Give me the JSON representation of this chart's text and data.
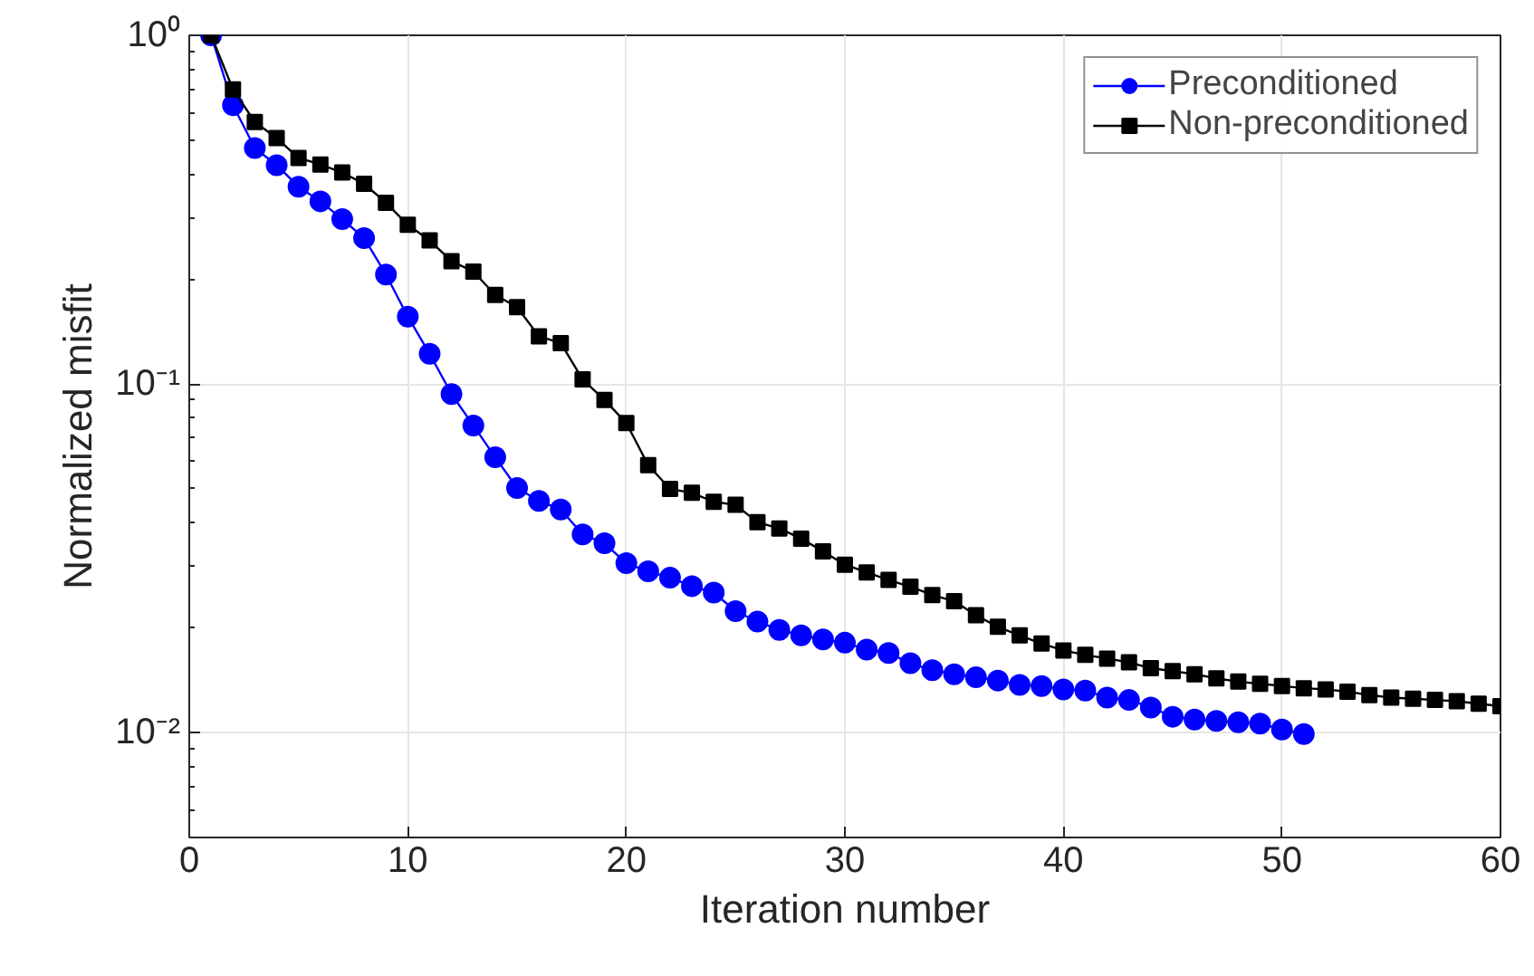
{
  "chart_data": {
    "type": "line",
    "xlabel": "Iteration number",
    "ylabel": "Normalized misfit",
    "log": "y",
    "grid": true,
    "legend": "top right",
    "line_style": "solid",
    "xlim": [
      0,
      60
    ],
    "xticks": [
      0,
      10,
      20,
      30,
      40,
      50,
      60
    ],
    "ylim": [
      0.005,
      1
    ],
    "yticks": [
      {
        "value": 0.01,
        "label": "10⁻²"
      },
      {
        "value": 0.1,
        "label": "10⁻¹"
      },
      {
        "value": 1,
        "label": "10⁰"
      }
    ],
    "series": [
      {
        "name": "Preconditioned",
        "color": "#0000ff",
        "marker": "circle",
        "x": [
          1,
          2,
          3,
          4,
          5,
          6,
          7,
          8,
          9,
          10,
          11,
          12,
          13,
          14,
          15,
          16,
          17,
          18,
          19,
          20,
          21,
          22,
          23,
          24,
          25,
          26,
          27,
          28,
          29,
          30,
          31,
          32,
          33,
          34,
          35,
          36,
          37,
          38,
          39,
          40,
          41,
          42,
          43,
          44,
          45,
          46,
          47,
          48,
          49,
          50,
          51
        ],
        "values": [
          1.0,
          0.63,
          0.475,
          0.424,
          0.368,
          0.334,
          0.297,
          0.262,
          0.206,
          0.156,
          0.122,
          0.0935,
          0.076,
          0.0616,
          0.0503,
          0.0462,
          0.0436,
          0.037,
          0.0349,
          0.0306,
          0.029,
          0.0278,
          0.0263,
          0.0252,
          0.0223,
          0.0208,
          0.0197,
          0.019,
          0.0185,
          0.0181,
          0.0173,
          0.0169,
          0.0158,
          0.0151,
          0.0147,
          0.0144,
          0.0141,
          0.0137,
          0.0136,
          0.0133,
          0.0132,
          0.0126,
          0.0124,
          0.0118,
          0.0111,
          0.0109,
          0.0108,
          0.0107,
          0.0106,
          0.0102,
          0.0099
        ]
      },
      {
        "name": "Non-preconditioned",
        "color": "#000000",
        "marker": "square",
        "x": [
          1,
          2,
          3,
          4,
          5,
          6,
          7,
          8,
          9,
          10,
          11,
          12,
          13,
          14,
          15,
          16,
          17,
          18,
          19,
          20,
          21,
          22,
          23,
          24,
          25,
          26,
          27,
          28,
          29,
          30,
          31,
          32,
          33,
          34,
          35,
          36,
          37,
          38,
          39,
          40,
          41,
          42,
          43,
          44,
          45,
          46,
          47,
          48,
          49,
          50,
          51,
          52,
          53,
          54,
          55,
          56,
          57,
          58,
          59,
          60
        ],
        "values": [
          1.0,
          0.7,
          0.564,
          0.507,
          0.445,
          0.426,
          0.404,
          0.375,
          0.331,
          0.286,
          0.258,
          0.225,
          0.21,
          0.18,
          0.166,
          0.137,
          0.131,
          0.103,
          0.09,
          0.0772,
          0.0585,
          0.05,
          0.0487,
          0.0459,
          0.045,
          0.0401,
          0.0385,
          0.036,
          0.0331,
          0.0303,
          0.0288,
          0.0274,
          0.0262,
          0.0248,
          0.0238,
          0.0217,
          0.0201,
          0.019,
          0.018,
          0.0172,
          0.0167,
          0.0163,
          0.0159,
          0.0153,
          0.015,
          0.0147,
          0.0143,
          0.014,
          0.0138,
          0.0136,
          0.0134,
          0.0133,
          0.0131,
          0.0128,
          0.0126,
          0.0125,
          0.0124,
          0.0123,
          0.0121,
          0.0119
        ]
      }
    ]
  }
}
